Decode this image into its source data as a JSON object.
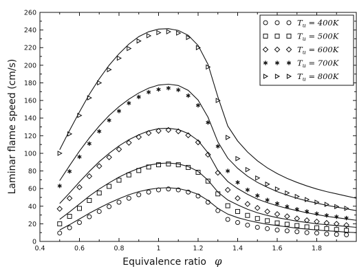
{
  "chart_data": {
    "type": "scatter",
    "title": "",
    "xlabel": "Equivalence ratio",
    "xlabel_symbol": "φ",
    "ylabel": "Laminar flame speed (cm/s)",
    "xlim": [
      0.4,
      2.0
    ],
    "ylim": [
      0,
      260
    ],
    "x_ticks": [
      "0.4",
      "0.6",
      "0.8",
      "1",
      "1.2",
      "1.4",
      "1.6",
      "1.8"
    ],
    "y_ticks": [
      "0",
      "10",
      "20",
      "30",
      "40",
      "50",
      "60",
      "70",
      "80",
      "90",
      "100",
      "110",
      "120",
      "130",
      "140",
      "150",
      "160",
      "170",
      "180",
      "190",
      "200",
      "210",
      "220",
      "230",
      "240",
      "250",
      "260"
    ],
    "grid": false,
    "legend_position": "top-right",
    "x": [
      0.5,
      0.55,
      0.6,
      0.65,
      0.7,
      0.75,
      0.8,
      0.85,
      0.9,
      0.95,
      1.0,
      1.05,
      1.1,
      1.15,
      1.2,
      1.25,
      1.3,
      1.35,
      1.4,
      1.45,
      1.5,
      1.55,
      1.6,
      1.65,
      1.7,
      1.75,
      1.8,
      1.85,
      1.9,
      1.95,
      2.0
    ],
    "series": [
      {
        "name": "T_u = 400K",
        "legend_var": "T",
        "legend_sub": "u",
        "legend_rest": " = 400K",
        "marker": "circle",
        "points": [
          9.5,
          15.5,
          21.5,
          28,
          34,
          39.5,
          44.5,
          49,
          53,
          56,
          58.5,
          59.5,
          58.5,
          56,
          51.5,
          44.5,
          35,
          25,
          21.5,
          18.5,
          16,
          14.5,
          13,
          12,
          11,
          10,
          9.5,
          8.5,
          8,
          7.5,
          7
        ],
        "curve": [
          13,
          19,
          25.5,
          32,
          38,
          43.5,
          48.5,
          53,
          56.5,
          59,
          60.5,
          61,
          60,
          57.5,
          53.5,
          46.5,
          37.5,
          31,
          27,
          24,
          21.5,
          19.5,
          18,
          16.5,
          15,
          14,
          13,
          12,
          11.5,
          10.5,
          10
        ]
      },
      {
        "name": "T_u = 500K",
        "legend_var": "T",
        "legend_sub": "u",
        "legend_rest": " = 500K",
        "marker": "square",
        "points": [
          20,
          28.5,
          37.5,
          46.5,
          55,
          62.5,
          69.5,
          75.5,
          80.5,
          84.5,
          87,
          88,
          87,
          84,
          78.5,
          68.5,
          54,
          40.5,
          34,
          29.5,
          26,
          23.5,
          21,
          19.5,
          18,
          16.5,
          15.5,
          14.5,
          13.5,
          12.5,
          12
        ],
        "curve": [
          25,
          33.5,
          42.5,
          51.5,
          59.5,
          66.5,
          73,
          78.5,
          83,
          86.5,
          88.5,
          89,
          88,
          85,
          79.5,
          69.5,
          56,
          47,
          41.5,
          36.5,
          32.5,
          29.5,
          27,
          25,
          23,
          21.5,
          20,
          19,
          18,
          17,
          16
        ]
      },
      {
        "name": "T_u = 600K",
        "legend_var": "T",
        "legend_sub": "u",
        "legend_rest": " = 600K",
        "marker": "diamond",
        "points": [
          37,
          49,
          61.5,
          74,
          85.5,
          95.5,
          104.5,
          112,
          118.5,
          123,
          125.5,
          126.5,
          125,
          120.5,
          112.5,
          98.5,
          78,
          58.5,
          49,
          42.5,
          38,
          34,
          31,
          28.5,
          26,
          24,
          22.5,
          21,
          20,
          18.5,
          17.5
        ],
        "curve": [
          43,
          55,
          67.5,
          79.5,
          90.5,
          100,
          108.5,
          115.5,
          121,
          125.5,
          128,
          128.5,
          127,
          122.5,
          114.5,
          100.5,
          80.5,
          68,
          60,
          53.5,
          48,
          44,
          40.5,
          37.5,
          35,
          32.5,
          30.5,
          28.5,
          27,
          25.5,
          24
        ]
      },
      {
        "name": "T_u = 700K",
        "legend_var": "T",
        "legend_sub": "u",
        "legend_rest": " = 700K",
        "marker": "asterisk",
        "points": [
          63,
          79.5,
          96,
          111,
          125,
          137.5,
          148,
          157,
          164,
          169.5,
          172.5,
          174,
          172,
          165.5,
          154.5,
          135,
          108,
          80,
          67,
          58.5,
          52,
          47,
          43,
          39.5,
          36.5,
          34,
          31.5,
          29.5,
          28,
          26.5,
          25
        ],
        "curve": [
          69,
          86,
          102.5,
          117.5,
          131,
          143,
          153,
          161.5,
          168.5,
          174,
          177.5,
          178.5,
          177,
          171.5,
          160.5,
          141,
          113,
          94.5,
          83,
          74,
          67,
          61.5,
          56.5,
          52.5,
          49,
          46,
          43.5,
          41,
          39,
          37,
          35
        ]
      },
      {
        "name": "T_u = 800K",
        "legend_var": "T",
        "legend_sub": "u",
        "legend_rest": " = 800K",
        "marker": "triangle-right",
        "points": [
          100,
          122,
          143,
          163,
          180,
          195,
          208,
          219,
          227.5,
          233.5,
          237,
          238,
          236.5,
          231.5,
          220,
          198,
          160,
          118,
          94,
          81.5,
          72,
          65,
          59.5,
          55,
          51,
          47.5,
          44.5,
          42,
          39.5,
          37.5,
          35.5
        ],
        "curve": [
          104,
          126,
          147,
          167,
          184.5,
          200,
          213,
          224,
          232.5,
          238,
          241,
          241.5,
          239.5,
          234,
          222.5,
          201,
          164,
          131,
          114,
          101.5,
          91.5,
          83.5,
          77,
          71.5,
          67,
          63,
          59.5,
          56.5,
          54,
          51.5,
          49
        ]
      }
    ]
  }
}
